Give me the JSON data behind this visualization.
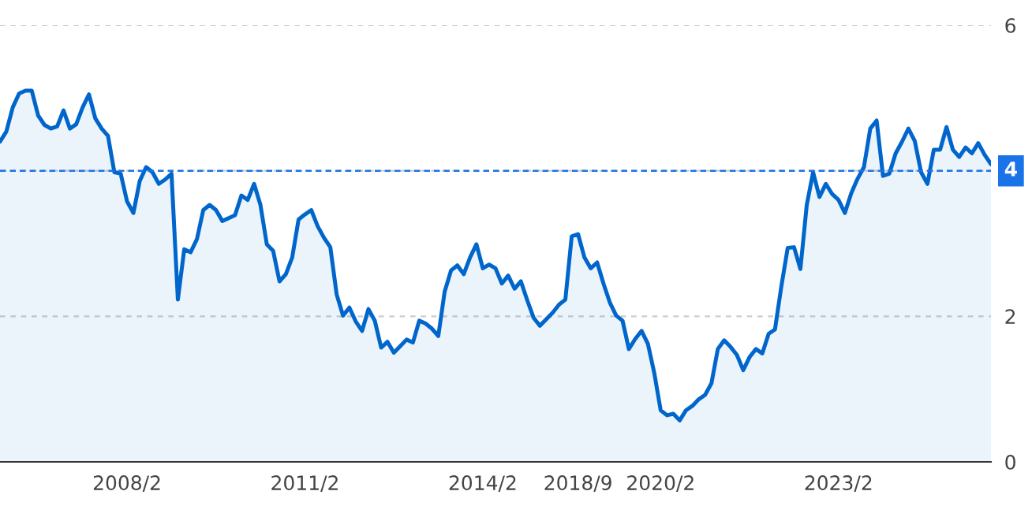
{
  "chart_data": {
    "type": "area",
    "categories": [
      null,
      null,
      null,
      null,
      null,
      null,
      null,
      null,
      null,
      null,
      null,
      null,
      null,
      null,
      null,
      null,
      null,
      null,
      null,
      null,
      "2008/2",
      null,
      null,
      null,
      null,
      null,
      null,
      null,
      null,
      null,
      null,
      null,
      null,
      null,
      null,
      null,
      null,
      null,
      null,
      null,
      null,
      null,
      null,
      null,
      null,
      null,
      null,
      null,
      "2011/2",
      null,
      null,
      null,
      null,
      null,
      null,
      null,
      null,
      null,
      null,
      null,
      null,
      null,
      null,
      null,
      null,
      null,
      null,
      null,
      null,
      null,
      null,
      null,
      null,
      null,
      null,
      null,
      "2014/2",
      null,
      null,
      null,
      null,
      null,
      null,
      null,
      null,
      null,
      null,
      null,
      null,
      null,
      null,
      "2018/9",
      null,
      null,
      null,
      null,
      null,
      null,
      null,
      null,
      null,
      null,
      null,
      null,
      "2020/2",
      null,
      null,
      null,
      null,
      null,
      null,
      null,
      null,
      null,
      null,
      null,
      null,
      null,
      null,
      null,
      null,
      null,
      null,
      null,
      null,
      null,
      null,
      null,
      null,
      null,
      null,
      null,
      "2023/2",
      null,
      null,
      null,
      null,
      null,
      null,
      null,
      null,
      null,
      null,
      null,
      null,
      null,
      null,
      null,
      null,
      null,
      null,
      null,
      null,
      null,
      null,
      null,
      null
    ],
    "series": [
      {
        "color": "#0066cc",
        "values": [
          4.4,
          4.54,
          4.87,
          5.06,
          5.1,
          5.1,
          4.76,
          4.63,
          4.58,
          4.61,
          4.83,
          4.58,
          4.64,
          4.87,
          5.05,
          4.72,
          4.58,
          4.48,
          3.98,
          3.96,
          3.58,
          3.42,
          3.86,
          4.05,
          3.98,
          3.82,
          3.88,
          3.96,
          2.23,
          2.92,
          2.88,
          3.06,
          3.46,
          3.53,
          3.46,
          3.31,
          3.35,
          3.39,
          3.66,
          3.6,
          3.82,
          3.53,
          2.99,
          2.9,
          2.48,
          2.58,
          2.81,
          3.33,
          3.4,
          3.46,
          3.24,
          3.08,
          2.95,
          2.3,
          2.01,
          2.12,
          1.93,
          1.8,
          2.1,
          1.94,
          1.57,
          1.65,
          1.5,
          1.59,
          1.68,
          1.64,
          1.94,
          1.9,
          1.83,
          1.73,
          2.34,
          2.63,
          2.7,
          2.58,
          2.81,
          2.99,
          2.66,
          2.71,
          2.66,
          2.45,
          2.56,
          2.38,
          2.48,
          2.22,
          1.98,
          1.87,
          1.96,
          2.05,
          2.16,
          2.23,
          3.1,
          3.13,
          2.81,
          2.66,
          2.74,
          2.45,
          2.19,
          2.01,
          1.94,
          1.55,
          1.69,
          1.8,
          1.62,
          1.22,
          0.71,
          0.64,
          0.66,
          0.57,
          0.71,
          0.77,
          0.86,
          0.92,
          1.08,
          1.55,
          1.67,
          1.58,
          1.47,
          1.26,
          1.44,
          1.55,
          1.49,
          1.76,
          1.82,
          2.41,
          2.94,
          2.95,
          2.65,
          3.53,
          3.98,
          3.64,
          3.82,
          3.68,
          3.6,
          3.42,
          3.69,
          3.89,
          4.05,
          4.58,
          4.69,
          3.93,
          3.96,
          4.24,
          4.4,
          4.58,
          4.41,
          3.98,
          3.82,
          4.29,
          4.29,
          4.6,
          4.29,
          4.19,
          4.32,
          4.24,
          4.38,
          4.22,
          4.09
        ]
      }
    ],
    "ylim": [
      0,
      6
    ],
    "yticks": [
      0,
      2,
      4,
      6
    ],
    "grid": "y",
    "ref_lines": [
      {
        "axis": "y",
        "value": 4,
        "label": "4",
        "color": "#1a73e8",
        "line_style": "dashed"
      }
    ]
  }
}
